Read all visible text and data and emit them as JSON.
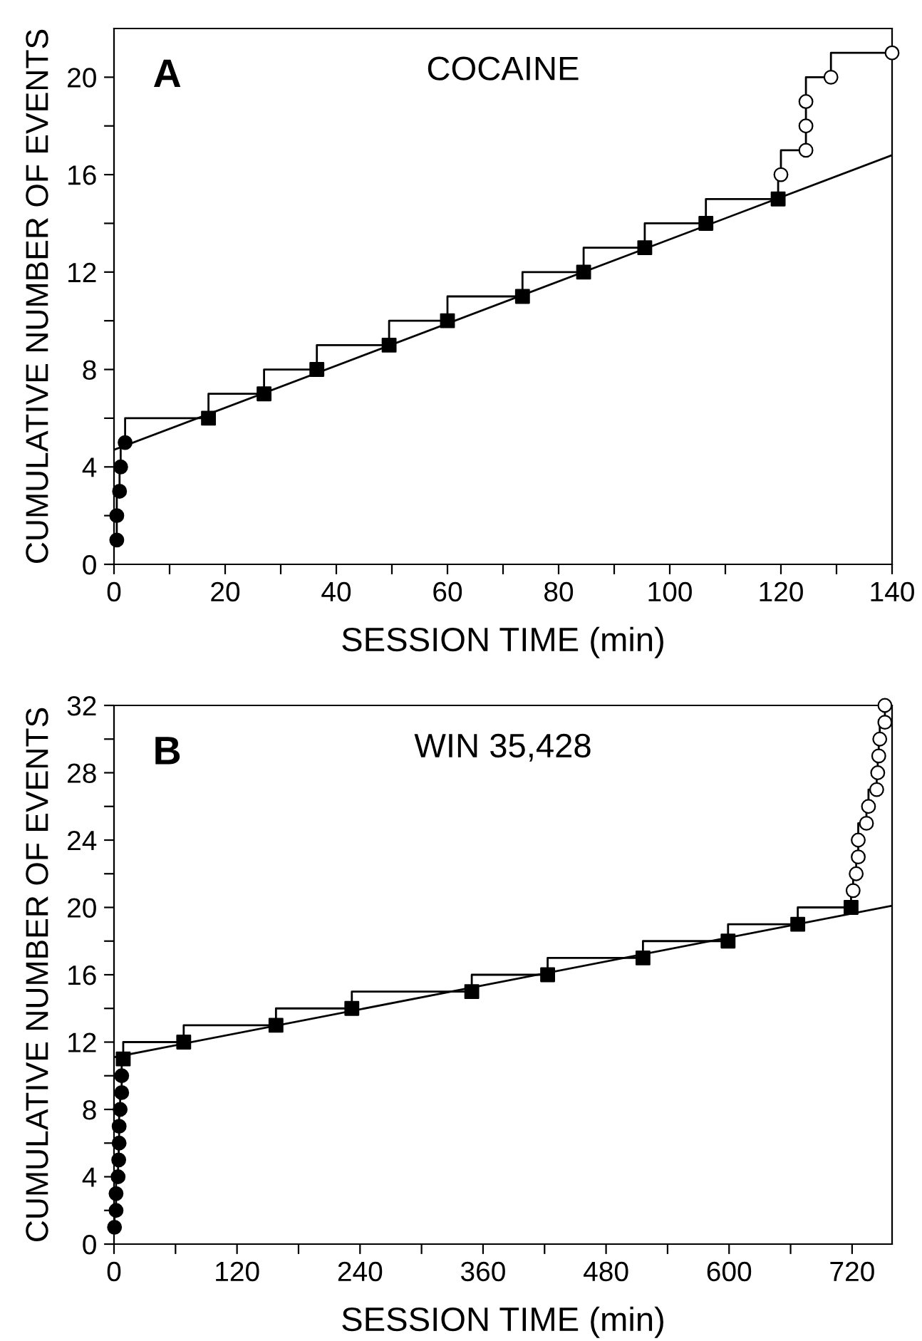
{
  "chart_data": [
    {
      "type": "scatter",
      "title": "COCAINE",
      "annotations": [
        "A"
      ],
      "xlabel": "SESSION TIME (min)",
      "ylabel": "CUMULATIVE NUMBER OF EVENTS",
      "xlim": [
        0,
        140
      ],
      "ylim": [
        0,
        22
      ],
      "xticks": [
        0,
        {
          "value": 10,
          "label": null
        },
        20,
        {
          "value": 30,
          "label": null
        },
        40,
        {
          "value": 50,
          "label": null
        },
        60,
        {
          "value": 70,
          "label": null
        },
        80,
        {
          "value": 90,
          "label": null
        },
        100,
        {
          "value": 110,
          "label": null
        },
        120,
        {
          "value": 130,
          "label": null
        },
        140
      ],
      "yticks": [
        0,
        {
          "value": 2,
          "label": null
        },
        4,
        {
          "value": 6,
          "label": null
        },
        8,
        {
          "value": 10,
          "label": null
        },
        12,
        {
          "value": 14,
          "label": null
        },
        16,
        {
          "value": 18,
          "label": null
        },
        20
      ],
      "grid": false,
      "legend": false,
      "series": [
        {
          "type": "step",
          "color": "#000000",
          "marker": "none",
          "x": [
            0.5,
            0.5,
            1,
            1.2,
            2,
            17,
            27,
            36.5,
            49.5,
            60,
            73.5,
            84.5,
            95.5,
            106.5,
            119.5,
            120,
            124.5,
            124.5,
            124.5,
            129,
            140
          ],
          "values": [
            1,
            2,
            3,
            4,
            5,
            6,
            7,
            8,
            9,
            10,
            11,
            12,
            13,
            14,
            15,
            16,
            17,
            18,
            19,
            20,
            21
          ]
        },
        {
          "type": "line",
          "color": "#000000",
          "marker": "none",
          "x": [
            0,
            140
          ],
          "values": [
            4.7,
            16.8
          ]
        },
        {
          "color": "#000000",
          "marker": "circle",
          "x": [
            0.5,
            0.5,
            1,
            1.2,
            2
          ],
          "values": [
            1,
            2,
            3,
            4,
            5
          ]
        },
        {
          "color": "#000000",
          "marker": "square",
          "x": [
            17,
            27,
            36.5,
            49.5,
            60,
            73.5,
            84.5,
            95.5,
            106.5,
            119.5
          ],
          "values": [
            6,
            7,
            8,
            9,
            10,
            11,
            12,
            13,
            14,
            15
          ]
        },
        {
          "color": "#ffffff",
          "marker": "circle",
          "x": [
            120,
            124.5,
            124.5,
            124.5,
            129,
            140
          ],
          "values": [
            16,
            17,
            18,
            19,
            20,
            21
          ]
        }
      ]
    },
    {
      "type": "scatter",
      "title": "WIN 35,428",
      "annotations": [
        "B"
      ],
      "xlabel": "SESSION TIME (min)",
      "ylabel": "CUMULATIVE NUMBER OF EVENTS",
      "xlim": [
        0,
        759
      ],
      "ylim": [
        0,
        32
      ],
      "xticks": [
        0,
        {
          "value": 60,
          "label": null
        },
        120,
        {
          "value": 180,
          "label": null
        },
        240,
        {
          "value": 300,
          "label": null
        },
        360,
        {
          "value": 420,
          "label": null
        },
        480,
        {
          "value": 540,
          "label": null
        },
        600,
        {
          "value": 660,
          "label": null
        },
        720
      ],
      "yticks": [
        0,
        {
          "value": 2,
          "label": null
        },
        4,
        {
          "value": 6,
          "label": null
        },
        8,
        {
          "value": 10,
          "label": null
        },
        12,
        {
          "value": 14,
          "label": null
        },
        16,
        {
          "value": 18,
          "label": null
        },
        20,
        {
          "value": 22,
          "label": null
        },
        24,
        {
          "value": 26,
          "label": null
        },
        28,
        {
          "value": 30,
          "label": null
        },
        32
      ],
      "grid": false,
      "legend": false,
      "series": [
        {
          "type": "step",
          "color": "#000000",
          "marker": "none",
          "x": [
            0.5,
            2,
            2,
            4,
            4.6,
            5,
            5,
            6,
            7.5,
            7.5,
            9,
            68,
            158,
            232,
            349,
            423,
            516,
            599,
            667,
            719,
            721,
            724,
            726,
            726,
            734,
            736,
            744,
            745,
            746,
            747,
            752,
            752
          ],
          "values": [
            1,
            2,
            3,
            4,
            5,
            6,
            7,
            8,
            9,
            10,
            11,
            12,
            13,
            14,
            15,
            16,
            17,
            18,
            19,
            20,
            21,
            22,
            23,
            24,
            25,
            26,
            27,
            28,
            29,
            30,
            31,
            32
          ]
        },
        {
          "type": "line",
          "color": "#000000",
          "marker": "none",
          "x": [
            0,
            759
          ],
          "values": [
            11.1,
            20.1
          ]
        },
        {
          "color": "#000000",
          "marker": "circle",
          "x": [
            0.5,
            2,
            2,
            4,
            4.6,
            5,
            5,
            6,
            7.5,
            7.5
          ],
          "values": [
            1,
            2,
            3,
            4,
            5,
            6,
            7,
            8,
            9,
            10
          ]
        },
        {
          "color": "#000000",
          "marker": "square",
          "x": [
            9,
            68,
            158,
            232,
            349,
            423,
            516,
            599,
            667,
            719
          ],
          "values": [
            11,
            12,
            13,
            14,
            15,
            16,
            17,
            18,
            19,
            20
          ]
        },
        {
          "color": "#ffffff",
          "marker": "circle",
          "x": [
            721,
            724,
            726,
            726,
            734,
            736,
            744,
            745,
            746,
            747,
            752,
            752
          ],
          "values": [
            21,
            22,
            23,
            24,
            25,
            26,
            27,
            28,
            29,
            30,
            31,
            32
          ]
        }
      ]
    }
  ]
}
